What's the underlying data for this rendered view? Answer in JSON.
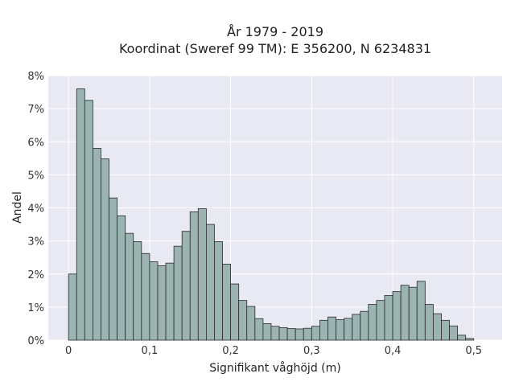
{
  "chart_data": {
    "type": "bar",
    "title": "År 1979 - 2019",
    "subtitle": "Koordinat (Sweref 99 TM): E 356200, N 6234831",
    "xlabel": "Signifikant våghöjd (m)",
    "ylabel": "Andel",
    "xlim": [
      -0.025,
      0.535
    ],
    "ylim": [
      0,
      8
    ],
    "y_unit": "%",
    "x_ticks": [
      0,
      0.1,
      0.2,
      0.3,
      0.4,
      0.5
    ],
    "x_tick_labels": [
      "0",
      "0,1",
      "0,2",
      "0,3",
      "0,4",
      "0,5"
    ],
    "y_ticks": [
      0,
      1,
      2,
      3,
      4,
      5,
      6,
      7,
      8
    ],
    "y_tick_labels": [
      "0%",
      "1%",
      "2%",
      "3%",
      "4%",
      "5%",
      "6%",
      "7%",
      "8%"
    ],
    "grid": true,
    "bin_width": 0.01,
    "bin_starts": [
      0.0,
      0.01,
      0.02,
      0.03,
      0.04,
      0.05,
      0.06,
      0.07,
      0.08,
      0.09,
      0.1,
      0.11,
      0.12,
      0.13,
      0.14,
      0.15,
      0.16,
      0.17,
      0.18,
      0.19,
      0.2,
      0.21,
      0.22,
      0.23,
      0.24,
      0.25,
      0.26,
      0.27,
      0.28,
      0.29,
      0.3,
      0.31,
      0.32,
      0.33,
      0.34,
      0.35,
      0.36,
      0.37,
      0.38,
      0.39,
      0.4,
      0.41,
      0.42,
      0.43,
      0.44,
      0.45,
      0.46,
      0.47,
      0.48,
      0.49,
      0.5
    ],
    "values": [
      2.0,
      7.6,
      7.25,
      5.8,
      5.48,
      4.3,
      3.76,
      3.23,
      2.98,
      2.62,
      2.37,
      2.25,
      2.33,
      2.84,
      3.29,
      3.88,
      3.98,
      3.5,
      2.98,
      2.3,
      1.7,
      1.2,
      1.02,
      0.65,
      0.5,
      0.42,
      0.38,
      0.35,
      0.34,
      0.36,
      0.42,
      0.6,
      0.7,
      0.62,
      0.66,
      0.78,
      0.87,
      1.08,
      1.2,
      1.35,
      1.47,
      1.66,
      1.6,
      1.78,
      1.08,
      0.8,
      0.6,
      0.43,
      0.15,
      0.05,
      0.0
    ],
    "colors": {
      "bar_fill": "#9bb4b1",
      "bar_edge": "#2a2a2a",
      "plot_bg": "#e8e9f2",
      "grid": "#ffffff"
    }
  }
}
